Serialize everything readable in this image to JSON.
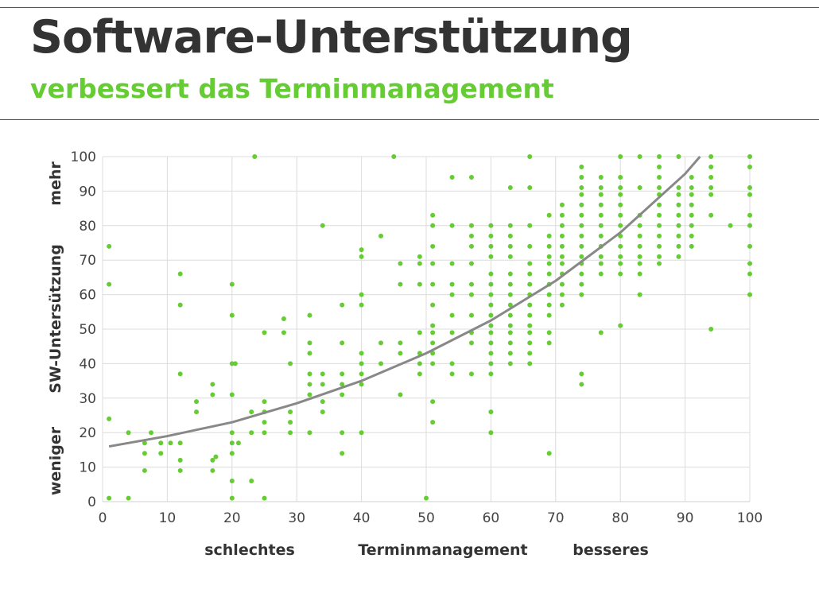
{
  "header": {
    "title": "Software-Unterstützung",
    "subtitle": "verbessert das Terminmanagement"
  },
  "colors": {
    "points": "#66cc33",
    "trend": "#888888",
    "title": "#333333",
    "subtitle": "#66cc33"
  },
  "labels": {
    "y_top": "mehr",
    "y_mid": "SW-Untersützung",
    "y_bottom": "weniger",
    "x_left": "schlechtes",
    "x_mid": "Terminmanagement",
    "x_right": "besseres"
  },
  "chart_data": {
    "type": "scatter",
    "xlim": [
      0,
      100
    ],
    "ylim": [
      0,
      100
    ],
    "x_ticks": [
      0,
      10,
      20,
      30,
      40,
      50,
      60,
      70,
      80,
      90,
      100
    ],
    "y_ticks": [
      0,
      10,
      20,
      30,
      40,
      50,
      60,
      70,
      80,
      90,
      100
    ],
    "grid": true,
    "trend_curve": [
      [
        1,
        16
      ],
      [
        10,
        19
      ],
      [
        20,
        23
      ],
      [
        30,
        28.5
      ],
      [
        40,
        35
      ],
      [
        50,
        43
      ],
      [
        60,
        52.5
      ],
      [
        70,
        64
      ],
      [
        80,
        78
      ],
      [
        90,
        95
      ],
      [
        92.3,
        100
      ]
    ],
    "points": [
      [
        1,
        74
      ],
      [
        1,
        63
      ],
      [
        1,
        24
      ],
      [
        1,
        1
      ],
      [
        4,
        20
      ],
      [
        4,
        1
      ],
      [
        6.5,
        17
      ],
      [
        6.5,
        14
      ],
      [
        6.5,
        9
      ],
      [
        7.5,
        20
      ],
      [
        9,
        17
      ],
      [
        9,
        14
      ],
      [
        10.5,
        17
      ],
      [
        12,
        66
      ],
      [
        12,
        57
      ],
      [
        12,
        37
      ],
      [
        12,
        17
      ],
      [
        12,
        12
      ],
      [
        12,
        9
      ],
      [
        14.5,
        29
      ],
      [
        14.5,
        26
      ],
      [
        17,
        34
      ],
      [
        17,
        31
      ],
      [
        17,
        12
      ],
      [
        17,
        9
      ],
      [
        17.5,
        13
      ],
      [
        20,
        63
      ],
      [
        20,
        54
      ],
      [
        20,
        40
      ],
      [
        20,
        31
      ],
      [
        20,
        20
      ],
      [
        20,
        17
      ],
      [
        20,
        14
      ],
      [
        20,
        6
      ],
      [
        20,
        1
      ],
      [
        20.5,
        40
      ],
      [
        21,
        17
      ],
      [
        23,
        6
      ],
      [
        23.5,
        100
      ],
      [
        23,
        26
      ],
      [
        23,
        20
      ],
      [
        25,
        49
      ],
      [
        25,
        29
      ],
      [
        25,
        26
      ],
      [
        25,
        23
      ],
      [
        25,
        20
      ],
      [
        25,
        1
      ],
      [
        28,
        53
      ],
      [
        28,
        49
      ],
      [
        29,
        40
      ],
      [
        29,
        26
      ],
      [
        29,
        23
      ],
      [
        29,
        20
      ],
      [
        32,
        54
      ],
      [
        32,
        46
      ],
      [
        32,
        43
      ],
      [
        32,
        37
      ],
      [
        32,
        34
      ],
      [
        32,
        31
      ],
      [
        32,
        20
      ],
      [
        34,
        80
      ],
      [
        34,
        37
      ],
      [
        34,
        34
      ],
      [
        34,
        29
      ],
      [
        34,
        26
      ],
      [
        37,
        57
      ],
      [
        37,
        46
      ],
      [
        37,
        37
      ],
      [
        37,
        34
      ],
      [
        37,
        31
      ],
      [
        37,
        20
      ],
      [
        37,
        14
      ],
      [
        40,
        73
      ],
      [
        40,
        71
      ],
      [
        40,
        60
      ],
      [
        40,
        57
      ],
      [
        40,
        43
      ],
      [
        40,
        40
      ],
      [
        40,
        37
      ],
      [
        40,
        34
      ],
      [
        40,
        20
      ],
      [
        43,
        77
      ],
      [
        43,
        46
      ],
      [
        43,
        40
      ],
      [
        45,
        100
      ],
      [
        46,
        69
      ],
      [
        46,
        63
      ],
      [
        46,
        46
      ],
      [
        46,
        43
      ],
      [
        46,
        31
      ],
      [
        49,
        71
      ],
      [
        49,
        69
      ],
      [
        49,
        63
      ],
      [
        49,
        49
      ],
      [
        49,
        43
      ],
      [
        49,
        40
      ],
      [
        49,
        37
      ],
      [
        50,
        1
      ],
      [
        51,
        83
      ],
      [
        51,
        80
      ],
      [
        51,
        74
      ],
      [
        51,
        69
      ],
      [
        51,
        63
      ],
      [
        51,
        57
      ],
      [
        51,
        51
      ],
      [
        51,
        49
      ],
      [
        51,
        46
      ],
      [
        51,
        43
      ],
      [
        51,
        40
      ],
      [
        51,
        29
      ],
      [
        51,
        23
      ],
      [
        54,
        94
      ],
      [
        54,
        80
      ],
      [
        54,
        69
      ],
      [
        54,
        63
      ],
      [
        54,
        60
      ],
      [
        54,
        54
      ],
      [
        54,
        49
      ],
      [
        54,
        40
      ],
      [
        54,
        37
      ],
      [
        57,
        94
      ],
      [
        57,
        80
      ],
      [
        57,
        77
      ],
      [
        57,
        74
      ],
      [
        57,
        69
      ],
      [
        57,
        63
      ],
      [
        57,
        60
      ],
      [
        57,
        54
      ],
      [
        57,
        49
      ],
      [
        57,
        46
      ],
      [
        57,
        37
      ],
      [
        60,
        80
      ],
      [
        60,
        77
      ],
      [
        60,
        74
      ],
      [
        60,
        71
      ],
      [
        60,
        66
      ],
      [
        60,
        63
      ],
      [
        60,
        60
      ],
      [
        60,
        57
      ],
      [
        60,
        54
      ],
      [
        60,
        51
      ],
      [
        60,
        49
      ],
      [
        60,
        46
      ],
      [
        60,
        43
      ],
      [
        60,
        40
      ],
      [
        60,
        37
      ],
      [
        60,
        26
      ],
      [
        60,
        20
      ],
      [
        63,
        91
      ],
      [
        63,
        80
      ],
      [
        63,
        77
      ],
      [
        63,
        74
      ],
      [
        63,
        71
      ],
      [
        63,
        66
      ],
      [
        63,
        63
      ],
      [
        63,
        60
      ],
      [
        63,
        57
      ],
      [
        63,
        54
      ],
      [
        63,
        51
      ],
      [
        63,
        49
      ],
      [
        63,
        46
      ],
      [
        63,
        43
      ],
      [
        63,
        40
      ],
      [
        66,
        100
      ],
      [
        66,
        91
      ],
      [
        66,
        80
      ],
      [
        66,
        74
      ],
      [
        66,
        69
      ],
      [
        66,
        66
      ],
      [
        66,
        63
      ],
      [
        66,
        60
      ],
      [
        66,
        57
      ],
      [
        66,
        54
      ],
      [
        66,
        51
      ],
      [
        66,
        49
      ],
      [
        66,
        46
      ],
      [
        66,
        43
      ],
      [
        66,
        40
      ],
      [
        69,
        83
      ],
      [
        69,
        77
      ],
      [
        69,
        74
      ],
      [
        69,
        71
      ],
      [
        69,
        69
      ],
      [
        69,
        66
      ],
      [
        69,
        63
      ],
      [
        69,
        60
      ],
      [
        69,
        57
      ],
      [
        69,
        54
      ],
      [
        69,
        49
      ],
      [
        69,
        46
      ],
      [
        69,
        14
      ],
      [
        71,
        86
      ],
      [
        71,
        83
      ],
      [
        71,
        80
      ],
      [
        71,
        77
      ],
      [
        71,
        74
      ],
      [
        71,
        71
      ],
      [
        71,
        69
      ],
      [
        71,
        66
      ],
      [
        71,
        63
      ],
      [
        71,
        60
      ],
      [
        71,
        57
      ],
      [
        74,
        97
      ],
      [
        74,
        94
      ],
      [
        74,
        91
      ],
      [
        74,
        89
      ],
      [
        74,
        86
      ],
      [
        74,
        83
      ],
      [
        74,
        80
      ],
      [
        74,
        77
      ],
      [
        74,
        74
      ],
      [
        74,
        71
      ],
      [
        74,
        69
      ],
      [
        74,
        66
      ],
      [
        74,
        63
      ],
      [
        74,
        60
      ],
      [
        74,
        37
      ],
      [
        74,
        34
      ],
      [
        77,
        94
      ],
      [
        77,
        91
      ],
      [
        77,
        89
      ],
      [
        77,
        86
      ],
      [
        77,
        83
      ],
      [
        77,
        80
      ],
      [
        77,
        77
      ],
      [
        77,
        74
      ],
      [
        77,
        71
      ],
      [
        77,
        69
      ],
      [
        77,
        66
      ],
      [
        77,
        49
      ],
      [
        80,
        100
      ],
      [
        80,
        94
      ],
      [
        80,
        91
      ],
      [
        80,
        89
      ],
      [
        80,
        86
      ],
      [
        80,
        83
      ],
      [
        80,
        80
      ],
      [
        80,
        77
      ],
      [
        80,
        74
      ],
      [
        80,
        71
      ],
      [
        80,
        69
      ],
      [
        80,
        66
      ],
      [
        80,
        51
      ],
      [
        83,
        100
      ],
      [
        83,
        91
      ],
      [
        83,
        83
      ],
      [
        83,
        80
      ],
      [
        83,
        77
      ],
      [
        83,
        74
      ],
      [
        83,
        71
      ],
      [
        83,
        69
      ],
      [
        83,
        66
      ],
      [
        83,
        60
      ],
      [
        86,
        100
      ],
      [
        86,
        97
      ],
      [
        86,
        94
      ],
      [
        86,
        91
      ],
      [
        86,
        89
      ],
      [
        86,
        86
      ],
      [
        86,
        83
      ],
      [
        86,
        80
      ],
      [
        86,
        77
      ],
      [
        86,
        74
      ],
      [
        86,
        71
      ],
      [
        86,
        69
      ],
      [
        89,
        100
      ],
      [
        89,
        91
      ],
      [
        89,
        89
      ],
      [
        89,
        86
      ],
      [
        89,
        83
      ],
      [
        89,
        80
      ],
      [
        89,
        77
      ],
      [
        89,
        74
      ],
      [
        89,
        71
      ],
      [
        91,
        94
      ],
      [
        91,
        91
      ],
      [
        91,
        89
      ],
      [
        91,
        86
      ],
      [
        91,
        83
      ],
      [
        91,
        80
      ],
      [
        91,
        77
      ],
      [
        91,
        74
      ],
      [
        94,
        100
      ],
      [
        94,
        97
      ],
      [
        94,
        94
      ],
      [
        94,
        91
      ],
      [
        94,
        89
      ],
      [
        94,
        83
      ],
      [
        94,
        50
      ],
      [
        97,
        80
      ],
      [
        100,
        100
      ],
      [
        100,
        97
      ],
      [
        100,
        91
      ],
      [
        100,
        89
      ],
      [
        100,
        83
      ],
      [
        100,
        80
      ],
      [
        100,
        74
      ],
      [
        100,
        69
      ],
      [
        100,
        66
      ],
      [
        100,
        60
      ]
    ]
  }
}
